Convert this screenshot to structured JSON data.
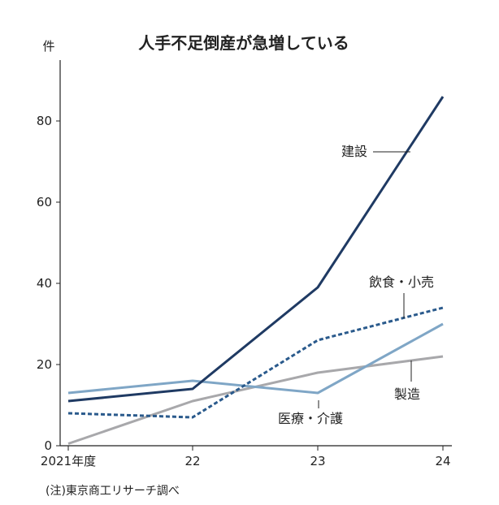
{
  "chart_data": {
    "type": "line",
    "title": "人手不足倒産が急増している",
    "y_unit": "件",
    "categories": [
      "2021年度",
      "22",
      "23",
      "24"
    ],
    "ylim": [
      0,
      95
    ],
    "yticks": [
      0,
      20,
      40,
      60,
      80
    ],
    "grid": false,
    "series": [
      {
        "name": "建設",
        "values": [
          11,
          14,
          39,
          86
        ],
        "color": "#1f3a63",
        "style": "solid"
      },
      {
        "name": "飲食・小売",
        "values": [
          8,
          7,
          26,
          34
        ],
        "color": "#2a5a8c",
        "style": "dashed"
      },
      {
        "name": "医療・介護",
        "values": [
          13,
          16,
          13,
          30
        ],
        "color": "#7fa6c6",
        "style": "solid"
      },
      {
        "name": "製造",
        "values": [
          0.5,
          11,
          18,
          22
        ],
        "color": "#a8a8ab",
        "style": "solid"
      }
    ],
    "note": "(注)東京商工リサーチ調べ"
  }
}
